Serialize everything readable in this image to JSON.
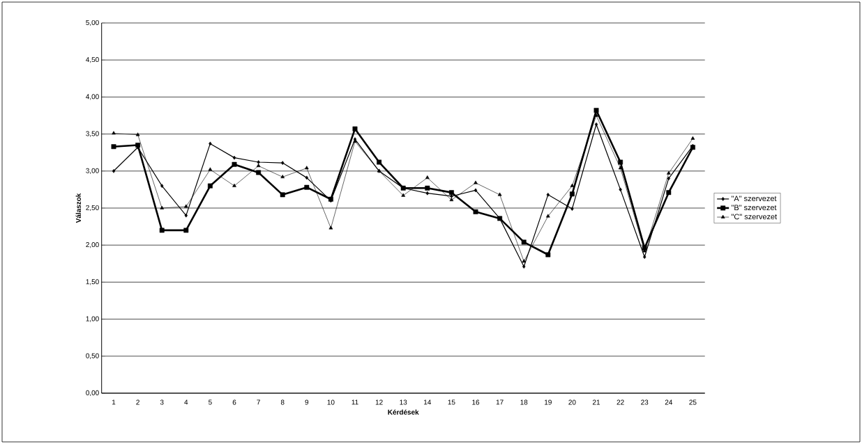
{
  "chart_data": {
    "type": "line",
    "xlabel": "Kérdések",
    "ylabel": "Válaszok",
    "categories": [
      "1",
      "2",
      "3",
      "4",
      "5",
      "6",
      "7",
      "8",
      "9",
      "10",
      "11",
      "12",
      "13",
      "14",
      "15",
      "16",
      "17",
      "18",
      "19",
      "20",
      "21",
      "22",
      "23",
      "24",
      "25"
    ],
    "series": [
      {
        "name": "\"A\" szervezet",
        "color": "#000000",
        "marker": "diamond",
        "values": [
          3.0,
          3.32,
          2.8,
          2.4,
          3.37,
          3.18,
          3.12,
          3.11,
          2.91,
          2.6,
          3.43,
          3.0,
          2.77,
          2.7,
          2.66,
          2.74,
          2.36,
          1.71,
          2.68,
          2.49,
          3.63,
          2.75,
          1.84,
          2.9,
          3.34
        ]
      },
      {
        "name": "\"B\" szervezet",
        "color": "#000000",
        "marker": "square",
        "values": [
          3.33,
          3.35,
          2.2,
          2.2,
          2.8,
          3.09,
          2.98,
          2.68,
          2.78,
          2.62,
          3.57,
          3.12,
          2.77,
          2.77,
          2.71,
          2.45,
          2.36,
          2.04,
          1.87,
          2.69,
          3.82,
          3.12,
          1.96,
          2.71,
          3.32
        ]
      },
      {
        "name": "\"C\" szervezet",
        "color": "#000000",
        "marker": "triangle",
        "values": [
          3.51,
          3.49,
          2.5,
          2.52,
          3.02,
          2.8,
          3.07,
          2.92,
          3.04,
          2.23,
          3.4,
          3.0,
          2.67,
          2.91,
          2.61,
          2.84,
          2.68,
          1.78,
          2.39,
          2.8,
          3.75,
          3.04,
          1.92,
          2.97,
          3.44
        ]
      }
    ],
    "ylim": [
      0,
      5
    ],
    "yticks": [
      {
        "value": 0,
        "label": "0,00"
      },
      {
        "value": 0.5,
        "label": "0,50"
      },
      {
        "value": 1,
        "label": "1,00"
      },
      {
        "value": 1.5,
        "label": "1,50"
      },
      {
        "value": 2,
        "label": "2,00"
      },
      {
        "value": 2.5,
        "label": "2,50"
      },
      {
        "value": 3,
        "label": "3,00"
      },
      {
        "value": 3.5,
        "label": "3,50"
      },
      {
        "value": 4,
        "label": "4,00"
      },
      {
        "value": 4.5,
        "label": "4,50"
      },
      {
        "value": 5,
        "label": "5,00"
      }
    ],
    "grid": "y",
    "legend": "right",
    "line_style": "solid"
  }
}
